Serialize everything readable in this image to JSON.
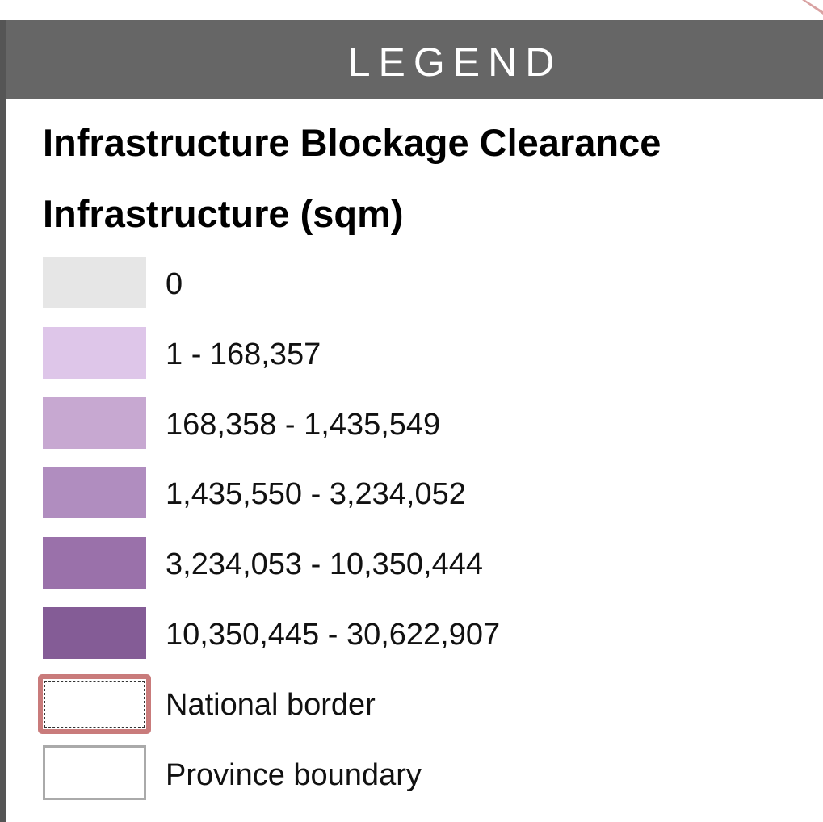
{
  "header": {
    "title": "LEGEND"
  },
  "legend": {
    "title": "Infrastructure Blockage Clearance",
    "subtitle": "Infrastructure (sqm)",
    "items": [
      {
        "label": "0",
        "color": "#e6e6e6"
      },
      {
        "label": "1 - 168,357",
        "color": "#dec6e9"
      },
      {
        "label": "168,358 - 1,435,549",
        "color": "#c7a8d1"
      },
      {
        "label": "1,435,550 - 3,234,052",
        "color": "#b08dbf"
      },
      {
        "label": "3,234,053 - 10,350,444",
        "color": "#9a71aa"
      },
      {
        "label": "10,350,445 - 30,622,907",
        "color": "#845c96"
      }
    ],
    "lines": [
      {
        "label": "National border",
        "color": "#c97b7b"
      },
      {
        "label": "Province boundary",
        "color": "#aaaaaa"
      }
    ]
  }
}
